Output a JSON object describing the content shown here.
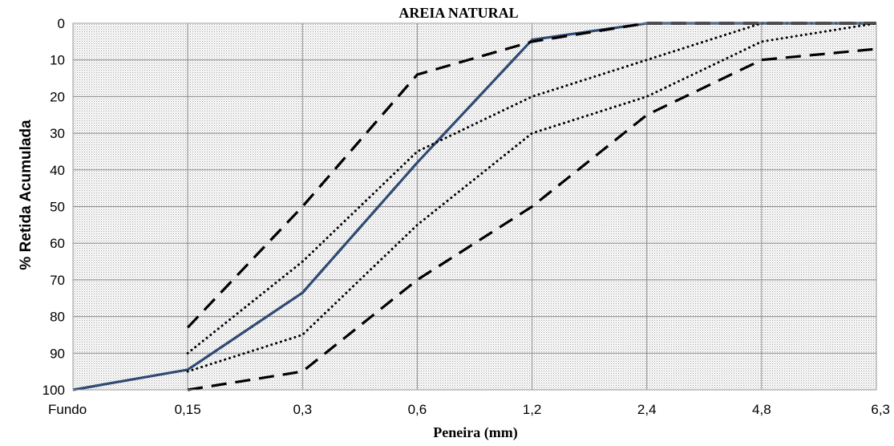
{
  "chart_data": {
    "type": "line",
    "title": "AREIA NATURAL",
    "xlabel": "Peneira (mm)",
    "ylabel": "% Retida Acumulada",
    "categories": [
      "Fundo",
      "0,15",
      "0,3",
      "0,6",
      "1,2",
      "2,4",
      "4,8",
      "6,3"
    ],
    "y_ticks": [
      "0",
      "10",
      "20",
      "30",
      "40",
      "50",
      "60",
      "70",
      "80",
      "90",
      "100"
    ],
    "ylim": [
      0,
      100
    ],
    "y_inverted": true,
    "grid": true,
    "series": [
      {
        "style": "solid",
        "color": "#2f4a73",
        "values": [
          100,
          94.5,
          73.5,
          38,
          4.5,
          0,
          0,
          0
        ]
      },
      {
        "style": "dashed",
        "color": "#000000",
        "values": [
          null,
          83,
          50,
          14,
          5,
          0,
          0,
          0
        ]
      },
      {
        "style": "dashed",
        "color": "#000000",
        "values": [
          null,
          100,
          95,
          70,
          50,
          25,
          10,
          7
        ]
      },
      {
        "style": "dotted",
        "color": "#000000",
        "values": [
          null,
          90,
          65,
          35,
          20,
          10,
          0,
          0
        ]
      },
      {
        "style": "dotted",
        "color": "#000000",
        "values": [
          null,
          95,
          85,
          55,
          30,
          20,
          5,
          0
        ]
      }
    ]
  }
}
